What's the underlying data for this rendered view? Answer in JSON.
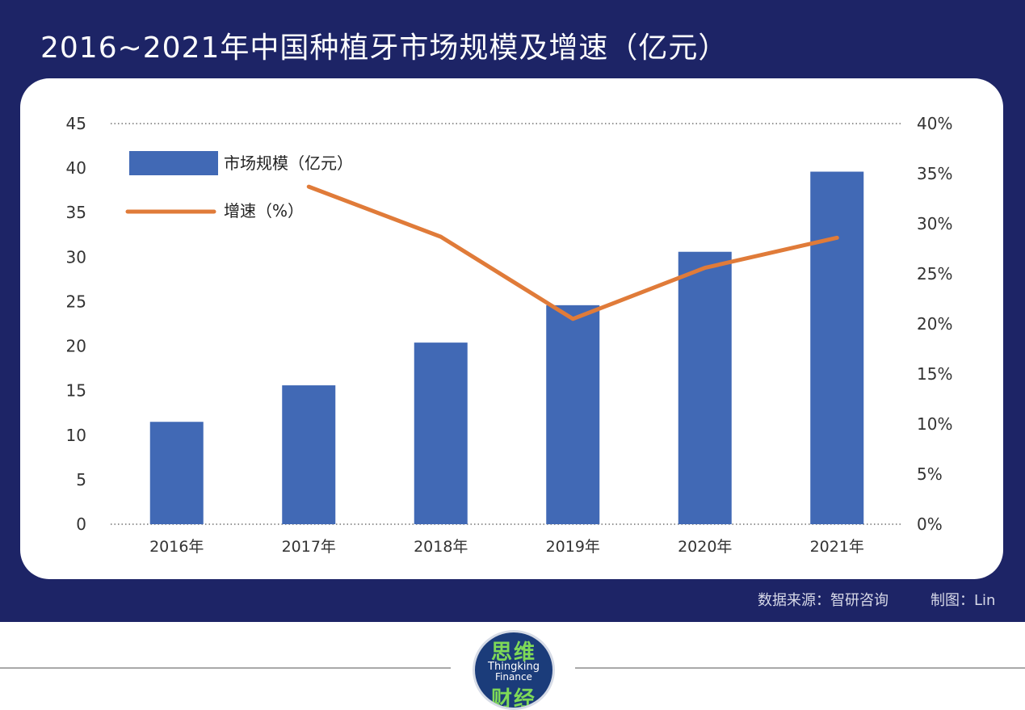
{
  "title": "2016~2021年中国种植牙市场规模及增速（亿元）",
  "source": "数据来源：智研咨询",
  "credit": "制图：Lin",
  "logo": {
    "top": "思维",
    "english_line1": "Thingking",
    "english_line2": "Finance",
    "bottom": "财经"
  },
  "colors": {
    "banner": "#1d2466",
    "bar": "#4169b5",
    "line": "#e07b39"
  },
  "chart_data": {
    "type": "bar",
    "title": "2016~2021年中国种植牙市场规模及增速（亿元）",
    "categories": [
      "2016年",
      "2017年",
      "2018年",
      "2019年",
      "2020年",
      "2021年"
    ],
    "series": [
      {
        "name": "市场规模（亿元）",
        "type": "bar",
        "axis": "left",
        "values": [
          11.5,
          15.6,
          20.4,
          24.6,
          30.6,
          39.6
        ]
      },
      {
        "name": "增速（%）",
        "type": "line",
        "axis": "right",
        "values": [
          null,
          33.7,
          28.7,
          20.5,
          25.6,
          28.6
        ]
      }
    ],
    "y_left": {
      "range": [
        0,
        45
      ],
      "ticks": [
        "0",
        "5",
        "10",
        "15",
        "20",
        "25",
        "30",
        "35",
        "40",
        "45"
      ]
    },
    "y_right": {
      "range": [
        0,
        40
      ],
      "ticks": [
        "0%",
        "5%",
        "10%",
        "15%",
        "20%",
        "25%",
        "30%",
        "35%",
        "40%"
      ]
    },
    "legend": [
      {
        "label": "市场规模（亿元）",
        "kind": "bar"
      },
      {
        "label": "增速（%）",
        "kind": "line"
      }
    ],
    "legend_position": "top-left",
    "grid": "top and bottom dotted lines"
  }
}
